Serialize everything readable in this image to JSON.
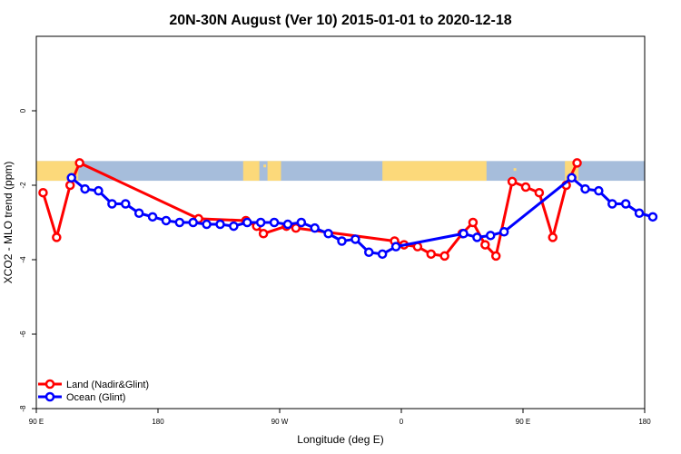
{
  "chart_data": {
    "type": "line",
    "title": "20N-30N August (Ver 10)   2015-01-01 to 2020-12-18",
    "xlabel": "Longitude (deg E)",
    "ylabel": "XCO2 - MLO trend (ppm)",
    "xlim": [
      90,
      540
    ],
    "ylim": [
      -8,
      2
    ],
    "x_ticks": [
      {
        "value": 90,
        "label": "90 E"
      },
      {
        "value": 180,
        "label": "180"
      },
      {
        "value": 270,
        "label": "90 W"
      },
      {
        "value": 360,
        "label": "0"
      },
      {
        "value": 450,
        "label": "90 E"
      },
      {
        "value": 540,
        "label": "180"
      }
    ],
    "y_ticks": [
      {
        "value": 0,
        "label": "0"
      },
      {
        "value": -2,
        "label": "-2"
      },
      {
        "value": -4,
        "label": "-4"
      },
      {
        "value": -6,
        "label": "-6"
      },
      {
        "value": -8,
        "label": "-8"
      }
    ],
    "background_map": {
      "lon_range": [
        90,
        540
      ],
      "lat_band": "20N-30N",
      "ocean_color": "#a6bddb",
      "land_color": "#fcd97a"
    },
    "legend_position": "bottom-left",
    "series": [
      {
        "name": "Land (Nadir&Glint)",
        "color": "#ff0000",
        "points": [
          [
            95,
            -2.2
          ],
          [
            105,
            -3.4
          ],
          [
            115,
            -2.0
          ],
          [
            122,
            -1.4
          ],
          [
            210,
            -2.9
          ],
          [
            245,
            -2.95
          ],
          [
            253,
            -3.1
          ],
          [
            258,
            -3.3
          ],
          [
            275,
            -3.1
          ],
          [
            282,
            -3.15
          ],
          [
            355,
            -3.5
          ],
          [
            362,
            -3.6
          ],
          [
            372,
            -3.65
          ],
          [
            382,
            -3.85
          ],
          [
            392,
            -3.9
          ],
          [
            405,
            -3.3
          ],
          [
            413,
            -3.0
          ],
          [
            422,
            -3.6
          ],
          [
            430,
            -3.9
          ],
          [
            442,
            -1.9
          ],
          [
            452,
            -2.05
          ],
          [
            462,
            -2.2
          ],
          [
            472,
            -3.4
          ],
          [
            482,
            -2.0
          ],
          [
            490,
            -1.4
          ]
        ]
      },
      {
        "name": "Ocean (Glint)",
        "color": "#0000ff",
        "points": [
          [
            116,
            -1.8
          ],
          [
            126,
            -2.1
          ],
          [
            136,
            -2.15
          ],
          [
            146,
            -2.5
          ],
          [
            156,
            -2.5
          ],
          [
            166,
            -2.75
          ],
          [
            176,
            -2.85
          ],
          [
            186,
            -2.95
          ],
          [
            196,
            -3.0
          ],
          [
            206,
            -3.0
          ],
          [
            216,
            -3.05
          ],
          [
            226,
            -3.05
          ],
          [
            236,
            -3.1
          ],
          [
            246,
            -3.0
          ],
          [
            256,
            -3.0
          ],
          [
            266,
            -3.0
          ],
          [
            276,
            -3.05
          ],
          [
            286,
            -3.0
          ],
          [
            296,
            -3.15
          ],
          [
            306,
            -3.3
          ],
          [
            316,
            -3.5
          ],
          [
            326,
            -3.45
          ],
          [
            336,
            -3.8
          ],
          [
            346,
            -3.85
          ],
          [
            356,
            -3.65
          ],
          [
            406,
            -3.3
          ],
          [
            416,
            -3.4
          ],
          [
            426,
            -3.35
          ],
          [
            436,
            -3.25
          ],
          [
            486,
            -1.8
          ],
          [
            496,
            -2.1
          ],
          [
            506,
            -2.15
          ],
          [
            516,
            -2.5
          ],
          [
            526,
            -2.5
          ],
          [
            536,
            -2.75
          ],
          [
            546,
            -2.85
          ]
        ]
      }
    ]
  }
}
